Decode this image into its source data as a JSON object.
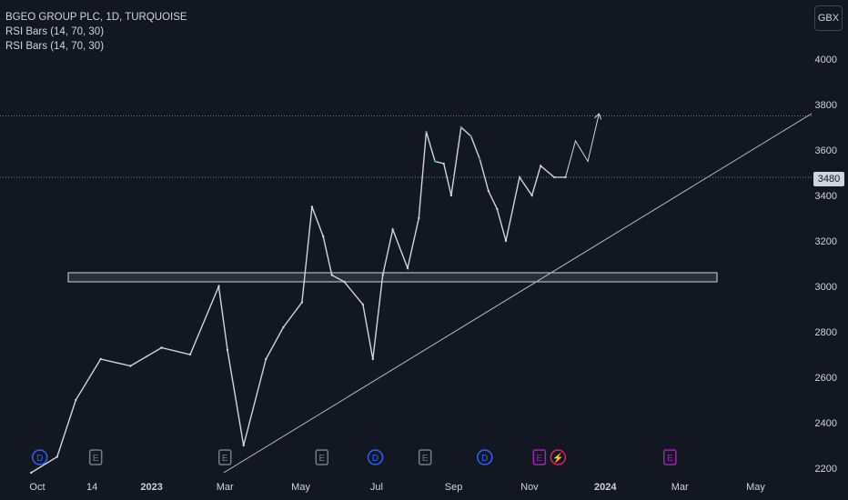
{
  "header": {
    "title": "BGEO GROUP PLC, 1D, TURQUOISE",
    "indicator_1": "RSI Bars (14, 70, 30)",
    "indicator_2": "RSI Bars (14, 70, 30)"
  },
  "currency_button": "GBX",
  "last_price_label": "3480",
  "colors": {
    "background": "#131722",
    "candle": "#d1d4dc",
    "overbought": "#26a69a",
    "text": "#d1d4dc",
    "dividend": "#2962ff",
    "earnings": "#787b86",
    "future_earnings": "#9c27b0",
    "split": "#e91e63"
  },
  "chart_data": {
    "type": "line",
    "title": "BGEO GROUP PLC, 1D, TURQUOISE",
    "y_ticks": [
      2200,
      2400,
      2600,
      2800,
      3000,
      3200,
      3400,
      3600,
      3800,
      4000
    ],
    "ylim": [
      2180,
      4100
    ],
    "x_ticks": [
      "Oct",
      "14",
      "2023",
      "Mar",
      "May",
      "Jul",
      "Sep",
      "Nov",
      "2024",
      "Mar",
      "May"
    ],
    "price_series": {
      "name": "",
      "x": [
        "2022-09-26",
        "2022-10-17",
        "2022-11-01",
        "2022-11-21",
        "2022-12-15",
        "2023-01-09",
        "2023-02-01",
        "2023-02-24",
        "2023-03-03",
        "2023-03-16",
        "2023-04-03",
        "2023-04-17",
        "2023-05-02",
        "2023-05-10",
        "2023-05-19",
        "2023-05-26",
        "2023-06-05",
        "2023-06-20",
        "2023-06-28",
        "2023-07-06",
        "2023-07-14",
        "2023-07-26",
        "2023-08-04",
        "2023-08-10",
        "2023-08-17",
        "2023-08-24",
        "2023-08-30",
        "2023-09-07",
        "2023-09-15",
        "2023-09-22",
        "2023-09-29",
        "2023-10-06",
        "2023-10-13",
        "2023-10-24",
        "2023-11-03",
        "2023-11-10",
        "2023-11-21",
        "2023-11-30"
      ],
      "y": [
        2180,
        2250,
        2500,
        2680,
        2650,
        2730,
        2700,
        3000,
        2720,
        2300,
        2680,
        2820,
        2930,
        3350,
        3220,
        3050,
        3020,
        2920,
        2680,
        3050,
        3250,
        3080,
        3300,
        3680,
        3550,
        3540,
        3400,
        3700,
        3660,
        3560,
        3420,
        3340,
        3200,
        3480,
        3400,
        3530,
        3480,
        3480
      ]
    },
    "projection": {
      "x": [
        "2023-11-30",
        "2023-12-08",
        "2023-12-18",
        "2023-12-27"
      ],
      "y": [
        3480,
        3640,
        3550,
        3760
      ]
    },
    "support_zone": {
      "y_low": 3020,
      "y_high": 3060
    },
    "resistance_line": 3750,
    "last_price": 3480,
    "trendline": {
      "x": [
        "2023-02-28",
        "2024-06-15"
      ],
      "y": [
        2180,
        3760
      ]
    },
    "events": [
      {
        "type": "dividend",
        "label": "D",
        "x": "2022-10-03"
      },
      {
        "type": "earnings",
        "label": "E",
        "x": "2022-11-17"
      },
      {
        "type": "earnings",
        "label": "E",
        "x": "2023-03-01"
      },
      {
        "type": "earnings",
        "label": "E",
        "x": "2023-05-18"
      },
      {
        "type": "dividend",
        "label": "D",
        "x": "2023-06-30"
      },
      {
        "type": "earnings",
        "label": "E",
        "x": "2023-08-09"
      },
      {
        "type": "dividend",
        "label": "D",
        "x": "2023-09-26"
      },
      {
        "type": "future_earnings",
        "label": "E",
        "x": "2023-11-09"
      },
      {
        "type": "split",
        "label": "⚡",
        "x": "2023-11-24"
      },
      {
        "type": "future_earnings",
        "label": "E",
        "x": "2024-02-22"
      }
    ]
  }
}
